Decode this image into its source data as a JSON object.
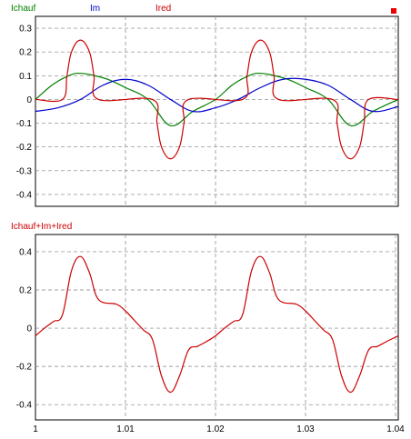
{
  "colors": {
    "ichauf": "#007f00",
    "im": "#0000cc",
    "ired": "#cc0000",
    "sum": "#cc0000",
    "corner_marker": "#ee0000"
  },
  "chart_data": [
    {
      "type": "line",
      "title": "",
      "xlabel": "",
      "ylabel": "",
      "xlim": [
        1.0,
        1.0403
      ],
      "ylim": [
        -0.45,
        0.35
      ],
      "yticks": [
        "0.3",
        "0.2",
        "0.1",
        "0",
        "-0.1",
        "-0.2",
        "-0.3",
        "-0.4"
      ],
      "ytick_values": [
        0.3,
        0.2,
        0.1,
        0,
        -0.1,
        -0.2,
        -0.3,
        -0.4
      ],
      "xtick_values": [
        1.0,
        1.01,
        1.02,
        1.03,
        1.04
      ],
      "grid": true,
      "legend": "top-left",
      "series": [
        {
          "name": "Ichauf",
          "color": "#007f00",
          "x": [
            1.0,
            1.002,
            1.004,
            1.005,
            1.006,
            1.008,
            1.01,
            1.0125,
            1.015,
            1.0175,
            1.02,
            1.022,
            1.024,
            1.025,
            1.026,
            1.028,
            1.03,
            1.0325,
            1.035,
            1.0375,
            1.0403
          ],
          "values": [
            0.0,
            0.065,
            0.105,
            0.11,
            0.105,
            0.085,
            0.05,
            0.0,
            -0.11,
            -0.05,
            0.0,
            0.065,
            0.105,
            0.11,
            0.105,
            0.085,
            0.05,
            0.0,
            -0.11,
            -0.05,
            0.0
          ]
        },
        {
          "name": "Im",
          "color": "#0000cc",
          "x": [
            1.0,
            1.0025,
            1.005,
            1.0075,
            1.01,
            1.0125,
            1.015,
            1.0175,
            1.02,
            1.0225,
            1.025,
            1.0275,
            1.03,
            1.0325,
            1.035,
            1.0375,
            1.0403
          ],
          "values": [
            -0.05,
            -0.035,
            0.0,
            0.06,
            0.085,
            0.06,
            0.0,
            -0.05,
            -0.035,
            0.0,
            0.05,
            0.085,
            0.085,
            0.06,
            0.0,
            -0.05,
            -0.03
          ]
        },
        {
          "name": "Ired",
          "color": "#cc0000",
          "x": [
            1.0,
            1.003,
            1.0035,
            1.004,
            1.005,
            1.006,
            1.0065,
            1.007,
            1.013,
            1.0135,
            1.014,
            1.015,
            1.016,
            1.0165,
            1.017,
            1.023,
            1.0235,
            1.024,
            1.025,
            1.026,
            1.0265,
            1.027,
            1.033,
            1.0335,
            1.034,
            1.035,
            1.036,
            1.0365,
            1.037,
            1.0403
          ],
          "values": [
            0.0,
            0.0,
            0.1,
            0.2,
            0.25,
            0.2,
            0.1,
            0.0,
            0.0,
            -0.1,
            -0.2,
            -0.25,
            -0.2,
            -0.1,
            0.0,
            0.0,
            0.1,
            0.2,
            0.25,
            0.2,
            0.1,
            0.0,
            0.0,
            -0.1,
            -0.2,
            -0.25,
            -0.2,
            -0.1,
            0.0,
            0.0
          ]
        }
      ]
    },
    {
      "type": "line",
      "title": "",
      "xlabel": "",
      "ylabel": "",
      "xlim": [
        1.0,
        1.0403
      ],
      "ylim": [
        -0.48,
        0.49
      ],
      "yticks": [
        "0.4",
        "0.2",
        "0",
        "-0.2",
        "-0.4"
      ],
      "ytick_values": [
        0.4,
        0.2,
        0,
        -0.2,
        -0.4
      ],
      "xticks": [
        "1",
        "1.01",
        "1.02",
        "1.03",
        "1.04"
      ],
      "xtick_values": [
        1.0,
        1.01,
        1.02,
        1.03,
        1.04
      ],
      "grid": true,
      "legend": "top-left",
      "series": [
        {
          "name": "Ichauf+Im+Ired",
          "color": "#cc0000",
          "x": [
            1.0,
            1.001,
            1.002,
            1.003,
            1.004,
            1.005,
            1.006,
            1.007,
            1.009,
            1.01,
            1.011,
            1.012,
            1.013,
            1.014,
            1.015,
            1.016,
            1.017,
            1.018,
            1.019,
            1.02,
            1.021,
            1.022,
            1.023,
            1.024,
            1.025,
            1.026,
            1.027,
            1.029,
            1.03,
            1.031,
            1.032,
            1.033,
            1.034,
            1.035,
            1.036,
            1.037,
            1.038,
            1.039,
            1.0403
          ],
          "values": [
            -0.04,
            0.0,
            0.035,
            0.07,
            0.3,
            0.375,
            0.29,
            0.15,
            0.125,
            0.09,
            0.04,
            -0.01,
            -0.06,
            -0.25,
            -0.335,
            -0.25,
            -0.115,
            -0.095,
            -0.07,
            -0.04,
            0.0,
            0.035,
            0.07,
            0.3,
            0.375,
            0.29,
            0.15,
            0.125,
            0.09,
            0.04,
            -0.01,
            -0.06,
            -0.25,
            -0.335,
            -0.25,
            -0.115,
            -0.095,
            -0.07,
            -0.04
          ]
        }
      ]
    }
  ]
}
